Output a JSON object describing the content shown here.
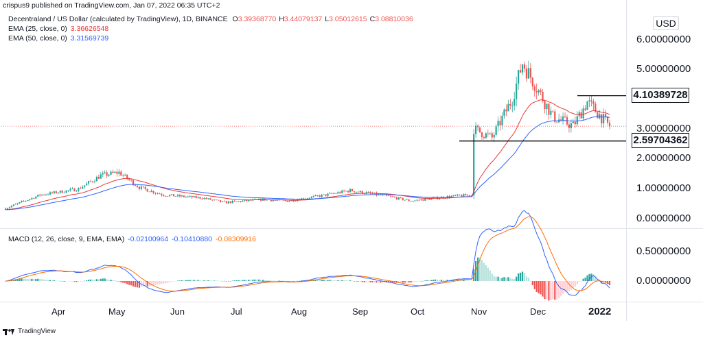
{
  "header": {
    "published": "crispus9 published on TradingView.com, Jan 07, 2022 06:35 UTC+2",
    "symbol": "Decentraland / US Dollar (calculated by TradingView), 1D, BINANCE",
    "ohlc": [
      {
        "k": "O",
        "v": "3.39368770"
      },
      {
        "k": "H",
        "v": "3.44079137"
      },
      {
        "k": "L",
        "v": "3.05012615"
      },
      {
        "k": "C",
        "v": "3.08810036"
      }
    ],
    "ema25_label": "EMA (25, close, 0)",
    "ema25_value": "3.36626548",
    "ema50_label": "EMA (50, close, 0)",
    "ema50_value": "3.31569739"
  },
  "macd": {
    "label": "MACD (12, 26, close, 9, EMA, EMA)",
    "v1": "-0.02100964",
    "v2": "-0.10410880",
    "v3": "-0.08309916"
  },
  "price_axis": {
    "currency": "USD",
    "ticks": [
      "6.00000000",
      "5.00000000",
      "3.00000000",
      "2.00000000",
      "1.00000000",
      "0.00000000"
    ],
    "tag_upper": "4.10389728",
    "tag_lower": "2.59704362"
  },
  "macd_axis": {
    "ticks": [
      "0.50000000",
      "0.00000000"
    ]
  },
  "time_axis": {
    "months": [
      "Apr",
      "May",
      "Jun",
      "Jul",
      "Aug",
      "Sep",
      "Oct",
      "Nov",
      "Dec"
    ],
    "year": "2022"
  },
  "footer": {
    "brand": "TradingView"
  },
  "colors": {
    "up": "#26a69a",
    "down": "#ef5350",
    "ema25": "#e53935",
    "ema50": "#2962ff",
    "macd": "#2962ff",
    "signal": "#ff6d00",
    "level": "#000000"
  },
  "chart_data": {
    "type": "candlestick",
    "price_range": [
      0,
      6.0
    ],
    "support": 2.59704362,
    "resistance": 4.10389728,
    "current": 3.08810036,
    "price_path": [
      {
        "date": "2021-03-15",
        "close": 0.35
      },
      {
        "date": "2021-04-01",
        "close": 0.8
      },
      {
        "date": "2021-04-20",
        "close": 1.0
      },
      {
        "date": "2021-05-01",
        "close": 1.45
      },
      {
        "date": "2021-05-10",
        "close": 1.55
      },
      {
        "date": "2021-05-20",
        "close": 1.05
      },
      {
        "date": "2021-06-01",
        "close": 0.8
      },
      {
        "date": "2021-06-20",
        "close": 0.7
      },
      {
        "date": "2021-07-01",
        "close": 0.55
      },
      {
        "date": "2021-07-20",
        "close": 0.65
      },
      {
        "date": "2021-08-01",
        "close": 0.6
      },
      {
        "date": "2021-08-20",
        "close": 0.8
      },
      {
        "date": "2021-09-01",
        "close": 0.95
      },
      {
        "date": "2021-09-20",
        "close": 0.75
      },
      {
        "date": "2021-10-01",
        "close": 0.6
      },
      {
        "date": "2021-10-20",
        "close": 0.75
      },
      {
        "date": "2021-10-31",
        "close": 0.8
      },
      {
        "date": "2021-11-01",
        "close": 3.0
      },
      {
        "date": "2021-11-10",
        "close": 2.7
      },
      {
        "date": "2021-11-20",
        "close": 4.0
      },
      {
        "date": "2021-11-25",
        "close": 5.2
      },
      {
        "date": "2021-12-01",
        "close": 4.5
      },
      {
        "date": "2021-12-10",
        "close": 3.4
      },
      {
        "date": "2021-12-20",
        "close": 3.1
      },
      {
        "date": "2021-12-27",
        "close": 3.9
      },
      {
        "date": "2022-01-07",
        "close": 3.09
      }
    ]
  }
}
